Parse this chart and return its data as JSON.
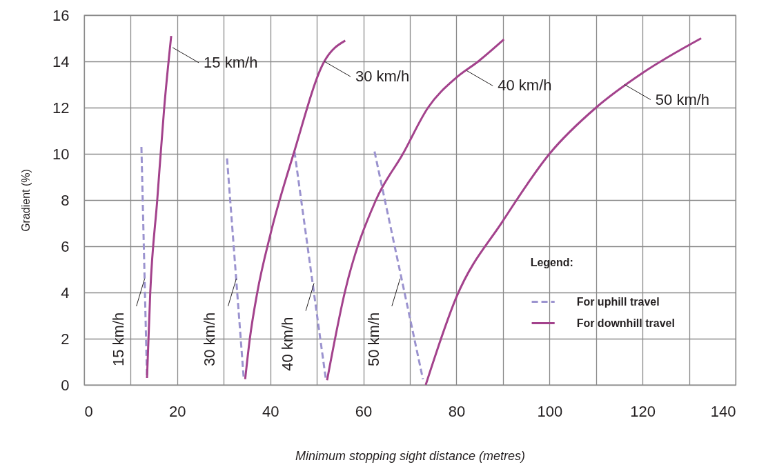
{
  "chart_data": {
    "type": "line",
    "xlabel": "Minimum stopping sight distance (metres)",
    "ylabel": "Gradient (%)",
    "legend_title": "Legend:",
    "xlim": [
      0,
      140
    ],
    "ylim": [
      0,
      16
    ],
    "xticks": [
      0,
      {
        "value": 10,
        "label": null
      },
      20,
      {
        "value": 30,
        "label": null
      },
      40,
      {
        "value": 50,
        "label": null
      },
      60,
      {
        "value": 70,
        "label": null
      },
      80,
      {
        "value": 90,
        "label": null
      },
      100,
      {
        "value": 110,
        "label": null
      },
      120,
      {
        "value": 130,
        "label": null
      },
      140
    ],
    "yticks": [
      0,
      2,
      4,
      6,
      8,
      10,
      12,
      14,
      16
    ],
    "grid": true,
    "legend": "right",
    "series": [
      {
        "name": "For uphill travel",
        "color": "#9b93cf",
        "line_style": "dashed",
        "x": [
          12.3,
          13.5,
          null,
          30.7,
          34.3,
          null,
          45.2,
          51.9,
          null,
          62.4,
          72.8
        ],
        "values": [
          10.3,
          0.3,
          null,
          9.8,
          0.25,
          null,
          10.1,
          0.3,
          null,
          10.1,
          0.25
        ]
      },
      {
        "name": "For downhill travel",
        "color": "#a3428c",
        "line_style": "solid",
        "x": [
          13.5,
          14.2,
          15.7,
          17.2,
          18.7,
          null,
          34.6,
          35.6,
          37.2,
          40,
          45,
          51.6,
          56.1,
          null,
          52.2,
          56,
          62.7,
          68.5,
          73.9,
          80,
          84.7,
          90.2,
          null,
          73.4,
          80,
          90,
          100,
          110,
          120,
          132.6
        ],
        "values": [
          0.3,
          4,
          8,
          12,
          15.1,
          null,
          0.25,
          2,
          4,
          6.5,
          10,
          14,
          14.9,
          null,
          0.2,
          4,
          8,
          10,
          12,
          13.3,
          14,
          14.95,
          null,
          0,
          3.8,
          7.1,
          10,
          12,
          13.5,
          15
        ]
      }
    ],
    "annotations": [
      {
        "text": "15 km/h",
        "x": 19.0,
        "y": 14.6
      },
      {
        "text": "30 km/h",
        "x": 51.6,
        "y": 14.0
      },
      {
        "text": "40 km/h",
        "x": 82.2,
        "y": 13.6
      },
      {
        "text": "50 km/h",
        "x": 116.1,
        "y": 13.0
      },
      {
        "text": "15 km/h",
        "x": 13.0,
        "y": 4.6
      },
      {
        "text": "30 km/h",
        "x": 32.7,
        "y": 4.6
      },
      {
        "text": "40 km/h",
        "x": 49.4,
        "y": 4.4
      },
      {
        "text": "50 km/h",
        "x": 67.9,
        "y": 4.6
      }
    ]
  }
}
